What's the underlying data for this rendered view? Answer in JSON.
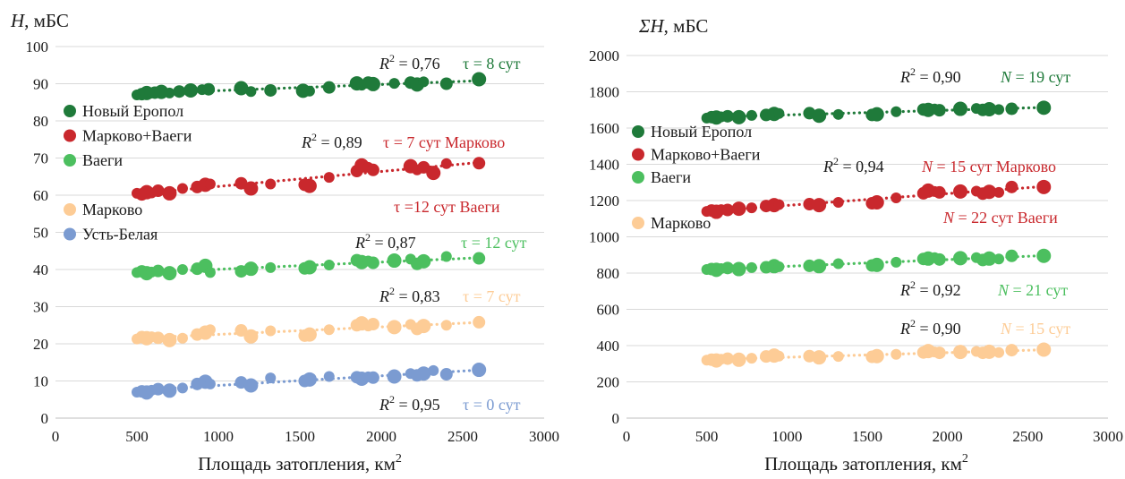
{
  "charts": [
    {
      "type": "scatter",
      "ylabel_var": "H",
      "ylabel_unit": ", мБС",
      "xlabel": "Площадь затопления, км",
      "xlabel_sup": "2",
      "xlim": [
        0,
        3000
      ],
      "ylim": [
        0,
        100
      ],
      "xticks": [
        0,
        500,
        1000,
        1500,
        2000,
        2500,
        3000
      ],
      "yticks": [
        0,
        10,
        20,
        30,
        40,
        50,
        60,
        70,
        80,
        90,
        100
      ],
      "grid": "horizontal",
      "legend": {
        "position": "left",
        "entries": [
          {
            "label": "Новый Еропол",
            "color": "#1f7a3a"
          },
          {
            "label": "Марково+Ваеги",
            "color": "#c9282d"
          },
          {
            "label": "Ваеги",
            "color": "#4cbf5f"
          },
          {
            "label": "",
            "color": ""
          },
          {
            "label": "Марково",
            "color": "#fdcc96"
          },
          {
            "label": "Усть-Белая",
            "color": "#7b9bd1"
          }
        ]
      },
      "series": [
        {
          "name": "Новый Еропол",
          "color": "#1f7a3a",
          "x": [
            500,
            530,
            560,
            580,
            610,
            650,
            700,
            760,
            830,
            900,
            940,
            1140,
            1200,
            1320,
            1520,
            1560,
            1680,
            1850,
            1880,
            1920,
            1950,
            2080,
            2180,
            2220,
            2260,
            2400,
            2600
          ],
          "y": [
            87,
            87.2,
            87.5,
            87.4,
            87.6,
            87.8,
            87.5,
            87.9,
            88.2,
            88.4,
            88.5,
            88.8,
            87.9,
            88.2,
            88.1,
            88,
            89,
            90.1,
            89.6,
            90.3,
            89.9,
            90.1,
            90.3,
            89.8,
            90.5,
            90,
            91.2
          ],
          "annotation": {
            "r2": "0,76",
            "tau": "τ = 8 сут"
          }
        },
        {
          "name": "Марково+Ваеги",
          "color": "#c9282d",
          "x": [
            500,
            530,
            560,
            590,
            630,
            700,
            780,
            870,
            920,
            950,
            1140,
            1200,
            1320,
            1530,
            1560,
            1680,
            1850,
            1880,
            1920,
            1950,
            2180,
            2220,
            2260,
            2320,
            2400,
            2600
          ],
          "y": [
            60.5,
            60.2,
            60.8,
            60.6,
            61.2,
            60.5,
            61.8,
            62.2,
            62.8,
            63,
            63.2,
            61.8,
            63,
            62.8,
            62.5,
            64.8,
            66.5,
            68,
            67.5,
            66.8,
            67.8,
            66.8,
            67.5,
            66,
            68.5,
            68.6
          ],
          "annotation": {
            "r2": "0,89",
            "tau": "τ = 7 сут Марково",
            "tau2": "τ =12  сут Ваеги"
          }
        },
        {
          "name": "Ваеги",
          "color": "#4cbf5f",
          "x": [
            500,
            530,
            560,
            590,
            630,
            700,
            780,
            870,
            920,
            950,
            1140,
            1200,
            1320,
            1530,
            1560,
            1680,
            1850,
            1880,
            1920,
            1950,
            2080,
            2180,
            2220,
            2260,
            2400,
            2600
          ],
          "y": [
            39.2,
            39.5,
            39,
            39.3,
            39.6,
            39,
            40,
            40.2,
            41,
            39.2,
            39.5,
            40.2,
            40.5,
            40.3,
            40.6,
            41.2,
            42.5,
            42,
            42.3,
            41.8,
            42.4,
            42.8,
            41.5,
            42.2,
            43.5,
            43
          ],
          "annotation": {
            "r2": "0,87",
            "tau": "τ = 12 сут"
          }
        },
        {
          "name": "Марково",
          "color": "#fdcc96",
          "x": [
            500,
            530,
            560,
            590,
            630,
            700,
            780,
            870,
            920,
            950,
            1140,
            1200,
            1320,
            1530,
            1560,
            1680,
            1850,
            1880,
            1920,
            1950,
            2080,
            2180,
            2220,
            2260,
            2400,
            2600
          ],
          "y": [
            21.3,
            21.8,
            21.5,
            21.9,
            21.6,
            21,
            21.5,
            22.5,
            23,
            23.8,
            23.6,
            22,
            23.5,
            22.2,
            22.5,
            23.8,
            25,
            25.5,
            24.8,
            25.3,
            24.5,
            25.2,
            24,
            24.8,
            25,
            25.8
          ],
          "annotation": {
            "r2": "0,83",
            "tau": "τ = 7 сут"
          }
        },
        {
          "name": "Усть-Белая",
          "color": "#7b9bd1",
          "x": [
            500,
            530,
            560,
            590,
            630,
            700,
            780,
            870,
            920,
            950,
            1140,
            1200,
            1320,
            1530,
            1560,
            1680,
            1850,
            1880,
            1920,
            1950,
            2080,
            2180,
            2220,
            2260,
            2320,
            2400,
            2600
          ],
          "y": [
            7,
            7.2,
            6.9,
            7.5,
            7.8,
            7.4,
            8.1,
            9.2,
            9.8,
            9.2,
            9.6,
            8.8,
            10.8,
            10,
            10.4,
            11.2,
            11,
            10.6,
            11.1,
            10.9,
            11.2,
            12,
            11.5,
            12,
            12.8,
            11.8,
            13
          ],
          "annotation": {
            "r2": "0,95",
            "tau": "τ = 0 сут"
          }
        }
      ]
    },
    {
      "type": "scatter",
      "ylabel_var": "ΣH",
      "ylabel_unit": ", мБС",
      "xlabel": "Площадь затопления, км",
      "xlabel_sup": "2",
      "xlim": [
        0,
        3000
      ],
      "ylim": [
        0,
        2000
      ],
      "xticks": [
        0,
        500,
        1000,
        1500,
        2000,
        2500,
        3000
      ],
      "yticks": [
        0,
        200,
        400,
        600,
        800,
        1000,
        1200,
        1400,
        1600,
        1800,
        2000
      ],
      "grid": "horizontal",
      "legend": {
        "position": "left",
        "entries": [
          {
            "label": "Новый Еропол",
            "color": "#1f7a3a"
          },
          {
            "label": "Марково+Ваеги",
            "color": "#c9282d"
          },
          {
            "label": "Ваеги",
            "color": "#4cbf5f"
          },
          {
            "label": "",
            "color": ""
          },
          {
            "label": "Марково",
            "color": "#fdcc96"
          }
        ]
      },
      "series": [
        {
          "name": "Новый Еропол",
          "color": "#1f7a3a",
          "x": [
            500,
            530,
            560,
            590,
            630,
            700,
            780,
            870,
            920,
            950,
            1140,
            1200,
            1320,
            1530,
            1560,
            1680,
            1850,
            1880,
            1920,
            1950,
            2080,
            2180,
            2220,
            2260,
            2320,
            2400,
            2600
          ],
          "y": [
            1655,
            1660,
            1658,
            1662,
            1665,
            1660,
            1670,
            1672,
            1678,
            1680,
            1682,
            1668,
            1675,
            1672,
            1676,
            1690,
            1702,
            1700,
            1705,
            1698,
            1706,
            1708,
            1700,
            1704,
            1702,
            1706,
            1712
          ],
          "annotation": {
            "r2": "0,90",
            "n": "N",
            "n_rest": " = 19 сут"
          }
        },
        {
          "name": "Марково+Ваеги",
          "color": "#c9282d",
          "x": [
            500,
            530,
            560,
            590,
            630,
            700,
            780,
            870,
            920,
            950,
            1140,
            1200,
            1320,
            1530,
            1560,
            1680,
            1850,
            1880,
            1920,
            1950,
            2080,
            2180,
            2220,
            2260,
            2320,
            2400,
            2600
          ],
          "y": [
            1140,
            1145,
            1138,
            1150,
            1148,
            1155,
            1160,
            1170,
            1175,
            1178,
            1180,
            1175,
            1190,
            1185,
            1190,
            1215,
            1240,
            1255,
            1250,
            1245,
            1250,
            1252,
            1238,
            1248,
            1245,
            1275,
            1275
          ],
          "annotation": {
            "r2": "0,94",
            "n": "N",
            "n_rest": " = 15 сут Марково",
            "n2": "N",
            "n2_rest": " = 22 сут  Ваеги"
          }
        },
        {
          "name": "Ваеги",
          "color": "#4cbf5f",
          "x": [
            500,
            530,
            560,
            590,
            630,
            700,
            780,
            870,
            920,
            950,
            1140,
            1200,
            1320,
            1530,
            1560,
            1680,
            1850,
            1880,
            1920,
            1950,
            2080,
            2180,
            2220,
            2260,
            2320,
            2400,
            2600
          ],
          "y": [
            820,
            822,
            818,
            825,
            828,
            822,
            830,
            832,
            838,
            835,
            840,
            838,
            852,
            842,
            845,
            860,
            878,
            880,
            885,
            875,
            882,
            885,
            872,
            880,
            878,
            895,
            895
          ],
          "annotation": {
            "r2": "0,92",
            "n": "N",
            "n_rest": " = 21 сут"
          }
        },
        {
          "name": "Марково",
          "color": "#fdcc96",
          "x": [
            500,
            530,
            560,
            590,
            630,
            700,
            780,
            870,
            920,
            950,
            1140,
            1200,
            1320,
            1530,
            1560,
            1680,
            1850,
            1880,
            1920,
            1950,
            2080,
            2180,
            2220,
            2260,
            2320,
            2400,
            2600
          ],
          "y": [
            320,
            322,
            318,
            325,
            328,
            322,
            330,
            340,
            345,
            342,
            342,
            335,
            340,
            338,
            342,
            352,
            362,
            370,
            365,
            360,
            365,
            368,
            360,
            366,
            362,
            375,
            378
          ],
          "annotation": {
            "r2": "0,90",
            "n": "N",
            "n_rest": " = 15 сут"
          }
        }
      ]
    }
  ]
}
